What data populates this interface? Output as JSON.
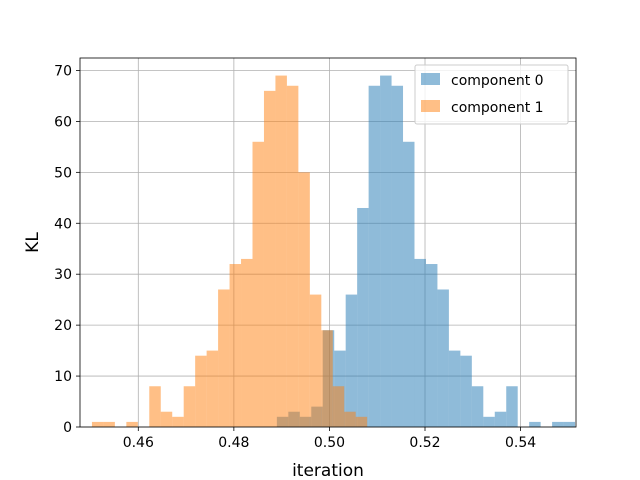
{
  "chart_data": {
    "type": "bar",
    "xlabel": "iteration",
    "ylabel": "KL",
    "xlim": [
      0.4478,
      0.5516
    ],
    "ylim": [
      0,
      72.45
    ],
    "xticks": [
      0.46,
      0.48,
      0.5,
      0.52,
      0.54
    ],
    "xtick_labels": [
      "0.46",
      "0.48",
      "0.50",
      "0.52",
      "0.54"
    ],
    "yticks": [
      0,
      10,
      20,
      30,
      40,
      50,
      60,
      70
    ],
    "ytick_labels": [
      "0",
      "10",
      "20",
      "30",
      "40",
      "50",
      "60",
      "70"
    ],
    "grid": true,
    "legend_position": "top-right",
    "series": [
      {
        "name": "component 0",
        "color": "#1f77b4",
        "opacity": 0.5,
        "bin_start": 0.489,
        "bin_width": 0.0024,
        "values": [
          2,
          3,
          2,
          4,
          19,
          15,
          26,
          43,
          67,
          69,
          67,
          56,
          33,
          32,
          27,
          15,
          14,
          8,
          2,
          3,
          8,
          0,
          1,
          0,
          1,
          1
        ]
      },
      {
        "name": "component 1",
        "color": "#ff7f0e",
        "opacity": 0.5,
        "bin_start": 0.4503,
        "bin_width": 0.0024,
        "values": [
          1,
          1,
          0,
          1,
          0,
          8,
          3,
          2,
          8,
          14,
          15,
          27,
          32,
          33,
          56,
          66,
          69,
          67,
          50,
          26,
          19,
          8,
          3,
          2
        ]
      }
    ]
  }
}
